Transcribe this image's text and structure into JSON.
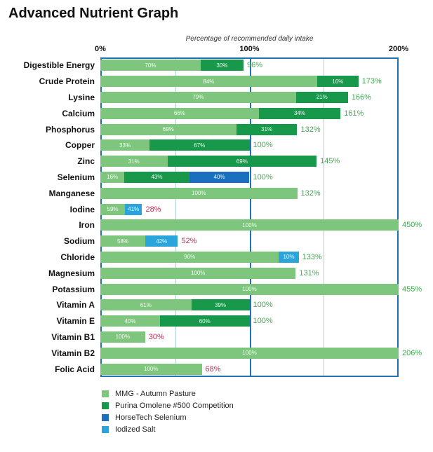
{
  "chart_data": {
    "type": "bar",
    "orientation": "horizontal",
    "title": "Advanced Nutrient Graph",
    "axis_title": "Percentage of recommended daily intake",
    "x_ticks": [
      {
        "label": "0%",
        "value": 0
      },
      {
        "label": "100%",
        "value": 100
      },
      {
        "label": "200%",
        "value": 200
      }
    ],
    "x_max": 200,
    "gridlines": [
      {
        "value": 50,
        "emphasis": false
      },
      {
        "value": 100,
        "emphasis": true
      },
      {
        "value": 150,
        "emphasis": false
      }
    ],
    "colors": {
      "plot_border": "#1E73B4",
      "gridline_light": "#AFCFE3",
      "gridline_emphasis": "#1E73B4",
      "total_ok": "#3FAA4F",
      "total_low": "#B52D50"
    },
    "series": [
      {
        "id": "mmg",
        "name": "MMG - Autumn Pasture",
        "color": "#7EC57D"
      },
      {
        "id": "purina",
        "name": "Purina Omolene #500 Competition",
        "color": "#17984B"
      },
      {
        "id": "horsetech",
        "name": "HorseTech Selenium",
        "color": "#1A70BE"
      },
      {
        "id": "iodized",
        "name": "Iodized Salt",
        "color": "#2BA4DB"
      }
    ],
    "rows": [
      {
        "label": "Digestible Energy",
        "total": 96,
        "total_label": "96%",
        "total_color": "ok",
        "segments": [
          {
            "series": "mmg",
            "pct": 70
          },
          {
            "series": "purina",
            "pct": 30
          }
        ]
      },
      {
        "label": "Crude Protein",
        "total": 173,
        "total_label": "173%",
        "total_color": "ok",
        "segments": [
          {
            "series": "mmg",
            "pct": 84
          },
          {
            "series": "purina",
            "pct": 16
          }
        ]
      },
      {
        "label": "Lysine",
        "total": 166,
        "total_label": "166%",
        "total_color": "ok",
        "segments": [
          {
            "series": "mmg",
            "pct": 79
          },
          {
            "series": "purina",
            "pct": 21
          }
        ]
      },
      {
        "label": "Calcium",
        "total": 161,
        "total_label": "161%",
        "total_color": "ok",
        "segments": [
          {
            "series": "mmg",
            "pct": 66
          },
          {
            "series": "purina",
            "pct": 34
          }
        ]
      },
      {
        "label": "Phosphorus",
        "total": 132,
        "total_label": "132%",
        "total_color": "ok",
        "segments": [
          {
            "series": "mmg",
            "pct": 69
          },
          {
            "series": "purina",
            "pct": 31
          }
        ]
      },
      {
        "label": "Copper",
        "total": 100,
        "total_label": "100%",
        "total_color": "ok",
        "segments": [
          {
            "series": "mmg",
            "pct": 33
          },
          {
            "series": "purina",
            "pct": 67
          }
        ]
      },
      {
        "label": "Zinc",
        "total": 145,
        "total_label": "145%",
        "total_color": "ok",
        "segments": [
          {
            "series": "mmg",
            "pct": 31
          },
          {
            "series": "purina",
            "pct": 69
          }
        ]
      },
      {
        "label": "Selenium",
        "total": 100,
        "total_label": "100%",
        "total_color": "ok",
        "segments": [
          {
            "series": "mmg",
            "pct": 16
          },
          {
            "series": "purina",
            "pct": 43
          },
          {
            "series": "horsetech",
            "pct": 40
          }
        ]
      },
      {
        "label": "Manganese",
        "total": 132,
        "total_label": "132%",
        "total_color": "ok",
        "segments": [
          {
            "series": "mmg",
            "pct": 100
          }
        ]
      },
      {
        "label": "Iodine",
        "total": 28,
        "total_label": "28%",
        "total_color": "low",
        "segments": [
          {
            "series": "mmg",
            "pct": 59
          },
          {
            "series": "iodized",
            "pct": 41
          }
        ]
      },
      {
        "label": "Iron",
        "total": 450,
        "total_label": "450%",
        "total_color": "ok",
        "segments": [
          {
            "series": "mmg",
            "pct": 100
          }
        ]
      },
      {
        "label": "Sodium",
        "total": 52,
        "total_label": "52%",
        "total_color": "low",
        "segments": [
          {
            "series": "mmg",
            "pct": 58
          },
          {
            "series": "iodized",
            "pct": 42
          }
        ]
      },
      {
        "label": "Chloride",
        "total": 133,
        "total_label": "133%",
        "total_color": "ok",
        "segments": [
          {
            "series": "mmg",
            "pct": 90
          },
          {
            "series": "iodized",
            "pct": 10
          }
        ]
      },
      {
        "label": "Magnesium",
        "total": 131,
        "total_label": "131%",
        "total_color": "ok",
        "segments": [
          {
            "series": "mmg",
            "pct": 100
          }
        ]
      },
      {
        "label": "Potassium",
        "total": 455,
        "total_label": "455%",
        "total_color": "ok",
        "segments": [
          {
            "series": "mmg",
            "pct": 100
          }
        ]
      },
      {
        "label": "Vitamin A",
        "total": 100,
        "total_label": "100%",
        "total_color": "ok",
        "segments": [
          {
            "series": "mmg",
            "pct": 61
          },
          {
            "series": "purina",
            "pct": 39
          }
        ]
      },
      {
        "label": "Vitamin E",
        "total": 100,
        "total_label": "100%",
        "total_color": "ok",
        "segments": [
          {
            "series": "mmg",
            "pct": 40
          },
          {
            "series": "purina",
            "pct": 60
          }
        ]
      },
      {
        "label": "Vitamin B1",
        "total": 30,
        "total_label": "30%",
        "total_color": "low",
        "segments": [
          {
            "series": "mmg",
            "pct": 100
          }
        ]
      },
      {
        "label": "Vitamin B2",
        "total": 206,
        "total_label": "206%",
        "total_color": "ok",
        "segments": [
          {
            "series": "mmg",
            "pct": 100
          }
        ]
      },
      {
        "label": "Folic Acid",
        "total": 68,
        "total_label": "68%",
        "total_color": "low",
        "segments": [
          {
            "series": "mmg",
            "pct": 100
          }
        ]
      }
    ],
    "legend_position": "bottom-left"
  }
}
